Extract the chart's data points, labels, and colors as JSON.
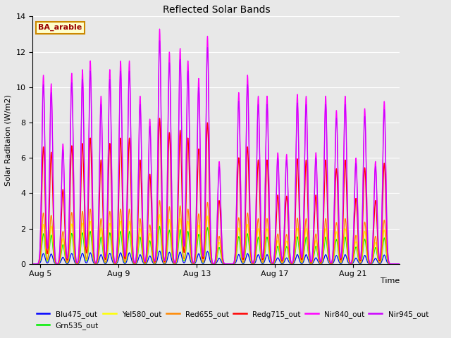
{
  "title": "Reflected Solar Bands",
  "xlabel": "Time",
  "ylabel": "Solar Raditaion (W/m2)",
  "ylim": [
    0,
    14
  ],
  "xlim_start": 4.6,
  "xlim_end": 23.4,
  "fig_bg_color": "#e8e8e8",
  "plot_bg_color": "#e8e8e8",
  "annotation_text": "BA_arable",
  "annotation_bg": "#ffffcc",
  "annotation_border": "#cc8800",
  "annotation_text_color": "#990000",
  "tick_days": [
    5,
    9,
    13,
    17,
    21
  ],
  "tick_labels": [
    "Aug 5",
    "Aug 9",
    "Aug 13",
    "Aug 17",
    "Aug 21"
  ],
  "series_order": [
    "Blu475_out",
    "Grn535_out",
    "Yel580_out",
    "Red655_out",
    "Redg715_out",
    "Nir840_out",
    "Nir945_out"
  ],
  "series": {
    "Blu475_out": {
      "color": "#0000ff",
      "scale": 0.055
    },
    "Grn535_out": {
      "color": "#00ee00",
      "scale": 0.16
    },
    "Yel580_out": {
      "color": "#ffff00",
      "scale": 0.21
    },
    "Red655_out": {
      "color": "#ff8800",
      "scale": 0.27
    },
    "Redg715_out": {
      "color": "#ff0000",
      "scale": 0.62
    },
    "Nir840_out": {
      "color": "#ff00ff",
      "scale": 1.0
    },
    "Nir945_out": {
      "color": "#cc00ff",
      "scale": 0.95
    }
  },
  "peak_times": [
    5.15,
    5.55,
    6.15,
    6.6,
    7.15,
    7.55,
    8.1,
    8.55,
    9.1,
    9.55,
    10.1,
    10.6,
    11.1,
    11.6,
    12.15,
    12.55,
    13.1,
    13.55,
    14.15,
    15.15,
    15.6,
    16.15,
    16.6,
    17.15,
    17.6,
    18.15,
    18.6,
    19.1,
    19.6,
    20.15,
    20.6,
    21.15,
    21.6,
    22.15,
    22.6
  ],
  "peak_heights": [
    10.7,
    10.2,
    6.8,
    10.8,
    11.0,
    11.5,
    9.5,
    11.0,
    11.5,
    11.5,
    9.5,
    8.2,
    13.3,
    12.0,
    12.2,
    11.5,
    10.5,
    12.9,
    5.8,
    9.7,
    10.7,
    9.5,
    9.5,
    6.3,
    6.2,
    9.6,
    9.5,
    6.3,
    9.5,
    8.7,
    9.5,
    6.0,
    8.8,
    5.8,
    9.2
  ],
  "sigma": 0.08,
  "pts": 2000
}
